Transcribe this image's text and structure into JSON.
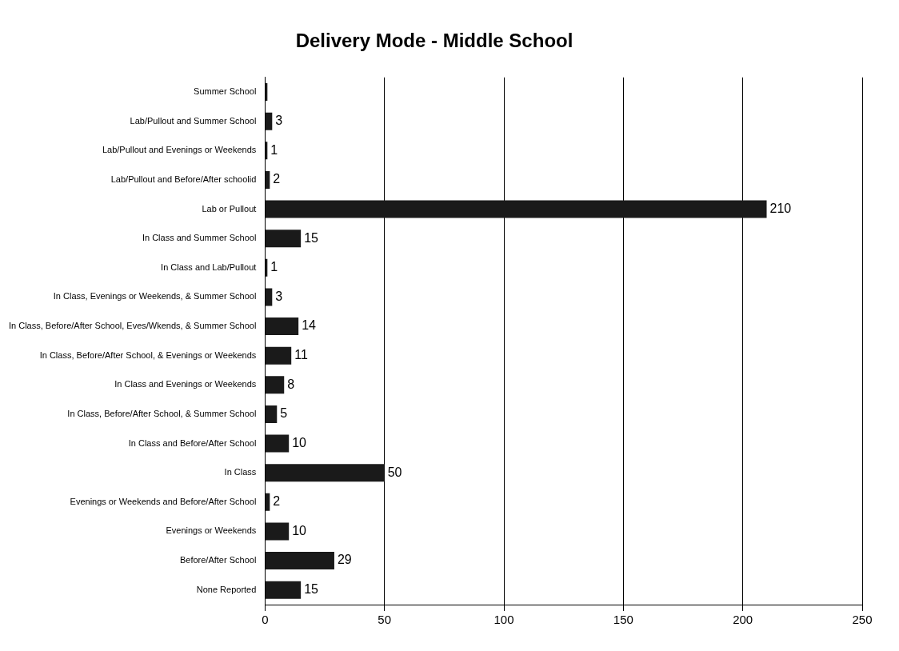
{
  "chart_data": {
    "type": "bar",
    "orientation": "horizontal",
    "title": "Delivery Mode - Middle School",
    "categories": [
      "Summer School",
      "Lab/Pullout and Summer School",
      "Lab/Pullout and Evenings or Weekends",
      "Lab/Pullout and Before/After schoolid",
      "Lab or Pullout",
      "In Class and Summer School",
      "In Class and Lab/Pullout",
      "In Class, Evenings or Weekends, & Summer School",
      "In Class, Before/After School, Eves/Wkends, & Summer School",
      "In Class, Before/After School, & Evenings or Weekends",
      "In Class and Evenings or Weekends",
      "In Class, Before/After School, & Summer School",
      "In Class and Before/After School",
      "In Class",
      "Evenings or Weekends and Before/After School",
      "Evenings or Weekends",
      "Before/After School",
      "None Reported"
    ],
    "values": [
      1,
      3,
      1,
      2,
      210,
      15,
      1,
      3,
      14,
      11,
      8,
      5,
      10,
      50,
      2,
      10,
      29,
      15
    ],
    "value_labels": [
      null,
      "3",
      "1",
      "2",
      "210",
      "15",
      "1",
      "3",
      "14",
      "11",
      "8",
      "5",
      "10",
      "50",
      "2",
      "10",
      "29",
      "15"
    ],
    "color": "#1a1a1a",
    "xlim": [
      0,
      250
    ],
    "xticks": [
      0,
      50,
      100,
      150,
      200,
      250
    ],
    "grid": "x",
    "legend": false
  }
}
